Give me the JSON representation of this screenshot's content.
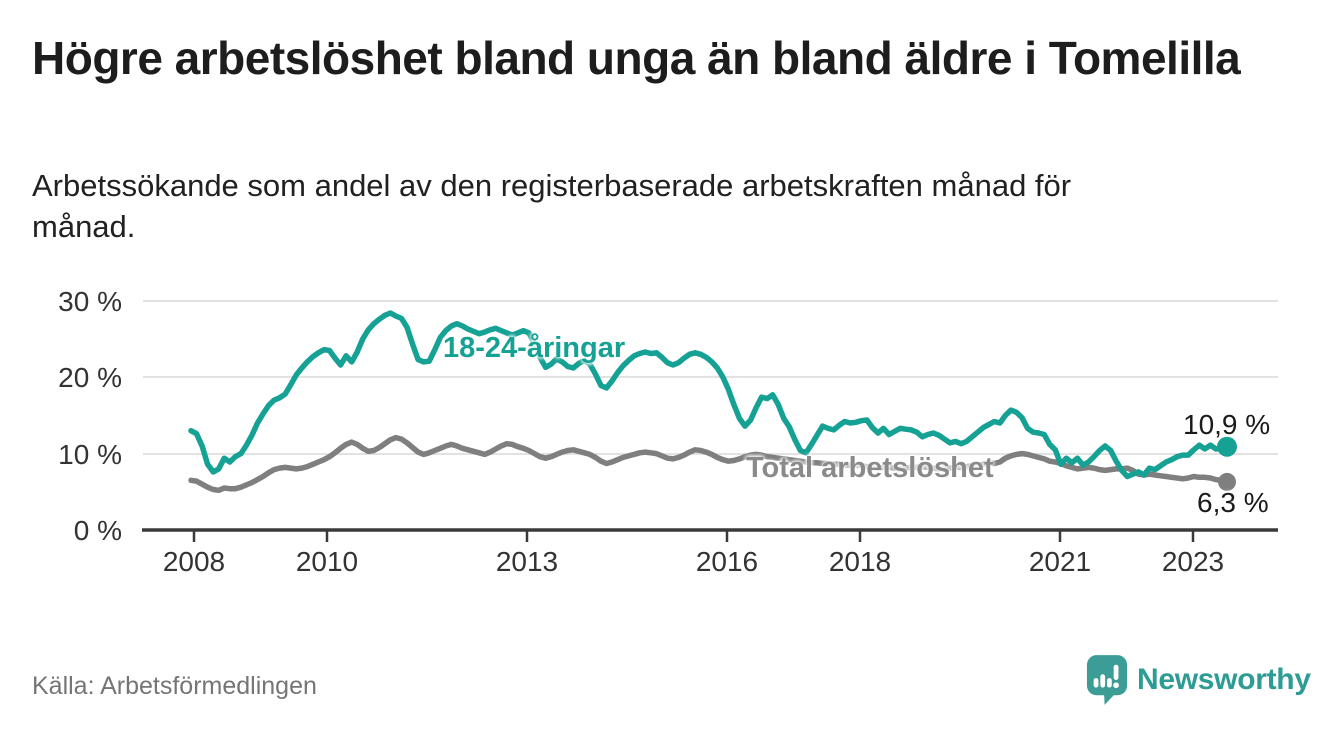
{
  "header": {
    "title": "Högre arbetslöshet bland unga än bland äldre i Tomelilla",
    "subtitle": "Arbetssökande som andel av den registerbaserade arbetskraften månad för månad."
  },
  "chart_data": {
    "type": "line",
    "unit": "percent",
    "x_start": "2008-01",
    "x_end": "2023-08",
    "x_frequency": "monthly",
    "ylim": [
      0,
      32
    ],
    "grid": true,
    "y_ticks": [
      "30 %",
      "20 %",
      "10 %",
      "0 %"
    ],
    "y_tick_values": [
      30,
      20,
      10,
      0
    ],
    "x_ticks": [
      "2008",
      "2010",
      "2013",
      "2016",
      "2018",
      "2021",
      "2023"
    ],
    "x_tick_years": [
      2008,
      2010,
      2013,
      2016,
      2018,
      2021,
      2023
    ],
    "series": [
      {
        "name": "18-24-åringar",
        "label": "18-24-åringar",
        "color": "#16A195",
        "end_label": "10,9 %",
        "end_value": 10.9,
        "values": [
          13.0,
          12.6,
          11.0,
          8.6,
          7.6,
          8.0,
          9.4,
          8.9,
          9.6,
          10.0,
          11.1,
          12.4,
          14.0,
          15.2,
          16.3,
          17.0,
          17.3,
          17.8,
          19.0,
          20.3,
          21.2,
          22.0,
          22.7,
          23.2,
          23.6,
          23.5,
          22.5,
          21.6,
          22.8,
          22.0,
          23.3,
          25.0,
          26.2,
          27.0,
          27.6,
          28.1,
          28.4,
          28.0,
          27.7,
          26.5,
          24.3,
          22.3,
          22.0,
          22.1,
          23.6,
          25.2,
          26.1,
          26.7,
          27.0,
          26.7,
          26.3,
          26.0,
          25.7,
          25.9,
          26.2,
          26.4,
          26.1,
          25.8,
          25.5,
          25.8,
          26.1,
          25.8,
          24.4,
          22.6,
          21.3,
          21.7,
          22.4,
          22.0,
          21.4,
          21.2,
          21.8,
          22.2,
          21.7,
          20.4,
          18.9,
          18.6,
          19.5,
          20.6,
          21.5,
          22.2,
          22.8,
          23.1,
          23.3,
          23.1,
          23.2,
          22.6,
          21.9,
          21.6,
          21.9,
          22.5,
          23.0,
          23.2,
          23.0,
          22.6,
          22.0,
          21.2,
          20.0,
          18.4,
          16.4,
          14.6,
          13.6,
          14.4,
          16.0,
          17.4,
          17.2,
          17.7,
          16.4,
          14.6,
          13.5,
          11.8,
          10.4,
          10.1,
          11.2,
          12.4,
          13.6,
          13.3,
          13.1,
          13.7,
          14.2,
          14.0,
          14.1,
          14.3,
          14.4,
          13.4,
          12.7,
          13.3,
          12.5,
          12.9,
          13.3,
          13.2,
          13.1,
          12.8,
          12.2,
          12.5,
          12.7,
          12.4,
          11.9,
          11.4,
          11.6,
          11.3,
          11.6,
          12.2,
          12.8,
          13.4,
          13.8,
          14.2,
          14.0,
          15.0,
          15.7,
          15.4,
          14.7,
          13.3,
          12.8,
          12.7,
          12.5,
          11.2,
          10.5,
          8.6,
          9.4,
          8.8,
          9.4,
          8.5,
          8.9,
          9.6,
          10.4,
          11.0,
          10.4,
          9.0,
          7.8,
          7.0,
          7.3,
          7.6,
          7.2,
          8.1,
          7.9,
          8.4,
          8.9,
          9.2,
          9.6,
          9.8,
          9.8,
          10.5,
          11.1,
          10.6,
          11.1,
          10.6,
          10.7,
          10.9
        ]
      },
      {
        "name": "Total arbetslöshet",
        "label": "Total arbetslöshet",
        "color": "#7F7F7F",
        "label_color": "#8a8a8a",
        "end_label": "6,3 %",
        "end_value": 6.3,
        "values": [
          6.5,
          6.4,
          6.0,
          5.6,
          5.3,
          5.2,
          5.5,
          5.4,
          5.4,
          5.6,
          5.9,
          6.2,
          6.6,
          7.0,
          7.5,
          7.9,
          8.1,
          8.2,
          8.1,
          8.0,
          8.1,
          8.3,
          8.6,
          8.9,
          9.2,
          9.6,
          10.1,
          10.7,
          11.2,
          11.5,
          11.2,
          10.7,
          10.3,
          10.4,
          10.8,
          11.3,
          11.8,
          12.1,
          11.9,
          11.4,
          10.8,
          10.2,
          9.9,
          10.1,
          10.4,
          10.7,
          11.0,
          11.2,
          11.0,
          10.7,
          10.5,
          10.3,
          10.1,
          9.9,
          10.2,
          10.6,
          11.0,
          11.3,
          11.2,
          10.9,
          10.7,
          10.4,
          10.0,
          9.6,
          9.4,
          9.6,
          9.9,
          10.2,
          10.4,
          10.5,
          10.3,
          10.1,
          9.9,
          9.5,
          9.0,
          8.7,
          8.9,
          9.2,
          9.5,
          9.7,
          9.9,
          10.1,
          10.2,
          10.1,
          10.0,
          9.7,
          9.4,
          9.3,
          9.5,
          9.8,
          10.2,
          10.5,
          10.4,
          10.2,
          9.9,
          9.5,
          9.2,
          9.0,
          9.1,
          9.3,
          9.6,
          9.8,
          9.9,
          9.8,
          9.6,
          9.5,
          9.4,
          9.3,
          9.2,
          9.1,
          9.0,
          8.9,
          8.8,
          8.8,
          8.7,
          8.7,
          8.6,
          8.6,
          8.5,
          8.5,
          8.5,
          8.4,
          8.3,
          8.2,
          8.1,
          8.2,
          8.2,
          8.1,
          8.0,
          8.1,
          8.2,
          8.2,
          8.3,
          8.2,
          8.1,
          8.0,
          8.0,
          8.1,
          8.2,
          8.2,
          8.3,
          8.4,
          8.5,
          8.6,
          8.8,
          8.7,
          8.9,
          9.4,
          9.7,
          9.9,
          10.0,
          9.9,
          9.7,
          9.5,
          9.3,
          9.0,
          8.9,
          8.7,
          8.4,
          8.2,
          8.0,
          8.1,
          8.2,
          8.1,
          7.9,
          7.8,
          7.9,
          8.0,
          8.0,
          8.1,
          7.8,
          7.3,
          7.2,
          7.3,
          7.2,
          7.1,
          7.0,
          6.9,
          6.8,
          6.7,
          6.8,
          7.0,
          6.9,
          6.9,
          6.8,
          6.6,
          6.5,
          6.3
        ]
      }
    ]
  },
  "source": {
    "label": "Källa: Arbetsförmedlingen"
  },
  "branding": {
    "name": "Newsworthy",
    "icon": "speech-bubble-bar-chart-icon",
    "color": "#2D9C94",
    "icon_color": "#3C9D96"
  }
}
